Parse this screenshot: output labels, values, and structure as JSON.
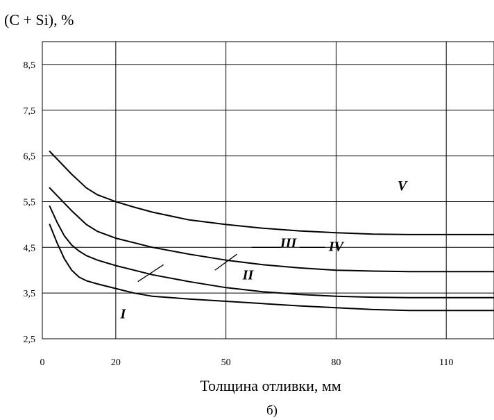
{
  "chart_data": {
    "type": "line",
    "title": "",
    "ylabel": "(C + Si), %",
    "xlabel": "Толщина отливки, мм",
    "caption": "б)",
    "x_ticks": [
      "0",
      "20",
      "50",
      "80",
      "110"
    ],
    "y_ticks": [
      "2,5",
      "3,5",
      "4,5",
      "5,5",
      "6,5",
      "7,5",
      "8,5"
    ],
    "xlim": [
      0,
      123
    ],
    "ylim": [
      2.5,
      9.0
    ],
    "grid": true,
    "line_color": "#000000",
    "series": [
      {
        "x": [
          2,
          5,
          8,
          10,
          12,
          15,
          20,
          25,
          30,
          40,
          50,
          60,
          70,
          80,
          90,
          100,
          110,
          123
        ],
        "y": [
          6.6,
          6.35,
          6.1,
          5.95,
          5.8,
          5.65,
          5.5,
          5.38,
          5.27,
          5.1,
          5.0,
          4.92,
          4.86,
          4.82,
          4.79,
          4.78,
          4.78,
          4.78
        ]
      },
      {
        "x": [
          2,
          5,
          8,
          10,
          12,
          15,
          20,
          25,
          30,
          40,
          50,
          60,
          70,
          80,
          90,
          100,
          110,
          123
        ],
        "y": [
          5.8,
          5.55,
          5.3,
          5.15,
          5.0,
          4.85,
          4.7,
          4.6,
          4.5,
          4.35,
          4.22,
          4.12,
          4.05,
          4.0,
          3.98,
          3.97,
          3.97,
          3.97
        ]
      },
      {
        "x": [
          2,
          4,
          6,
          8,
          10,
          12,
          15,
          20,
          25,
          30,
          40,
          50,
          60,
          70,
          80,
          90,
          100,
          110,
          123
        ],
        "y": [
          5.4,
          5.05,
          4.75,
          4.55,
          4.42,
          4.32,
          4.22,
          4.1,
          4.0,
          3.9,
          3.75,
          3.62,
          3.53,
          3.47,
          3.43,
          3.41,
          3.4,
          3.4,
          3.4
        ]
      },
      {
        "x": [
          2,
          4,
          6,
          8,
          10,
          12,
          15,
          20,
          25,
          30,
          40,
          50,
          60,
          70,
          80,
          90,
          100,
          110,
          123
        ],
        "y": [
          5.0,
          4.6,
          4.25,
          4.0,
          3.85,
          3.77,
          3.7,
          3.6,
          3.5,
          3.43,
          3.37,
          3.32,
          3.27,
          3.22,
          3.18,
          3.14,
          3.12,
          3.12,
          3.12
        ]
      }
    ],
    "annotations": [
      {
        "text": "I",
        "x": 22,
        "y": 2.95
      },
      {
        "text": "II",
        "x": 56,
        "y": 3.8
      },
      {
        "text": "III",
        "x": 67,
        "y": 4.5
      },
      {
        "text": "IV",
        "x": 80,
        "y": 4.42
      },
      {
        "text": "V",
        "x": 98,
        "y": 5.75
      }
    ]
  }
}
